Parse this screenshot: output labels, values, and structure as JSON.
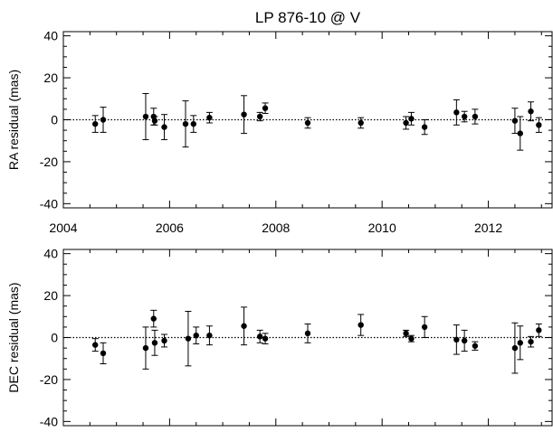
{
  "chart_data": [
    {
      "type": "scatter",
      "title": "LP 876-10 @ V",
      "xlabel": "",
      "ylabel": "RA residual (mas)",
      "xlim": [
        2004,
        2013.2
      ],
      "ylim": [
        -42,
        42
      ],
      "x_ticks": [
        "2004",
        "2006",
        "2008",
        "2010",
        "2012"
      ],
      "y_ticks": [
        "40",
        "20",
        "0",
        "-20",
        "-40"
      ],
      "reference_line": 0,
      "series": [
        {
          "x": [
            2004.6,
            2004.75,
            2005.55,
            2005.7,
            2005.72,
            2005.9,
            2006.3,
            2006.45,
            2006.75,
            2007.4,
            2007.7,
            2007.8,
            2008.6,
            2009.6,
            2010.45,
            2010.55,
            2010.8,
            2011.4,
            2011.55,
            2011.75,
            2012.5,
            2012.6,
            2012.8,
            2012.95
          ],
          "y": [
            -2,
            0,
            1.5,
            1.5,
            -0.5,
            -3.5,
            -2,
            -2,
            1,
            2.5,
            1.5,
            5.5,
            -1.5,
            -1.5,
            -1.5,
            0.5,
            -3.5,
            3.5,
            1.5,
            1.5,
            -0.5,
            -6.5,
            4,
            -2.5
          ],
          "err": [
            4,
            6,
            11,
            4,
            2,
            6,
            11,
            4,
            2.5,
            9,
            2,
            2.5,
            2.5,
            2.5,
            3,
            3,
            3.5,
            6,
            2.5,
            3.5,
            6,
            8,
            4.5,
            3.5
          ]
        }
      ]
    },
    {
      "type": "scatter",
      "title": "",
      "xlabel": "",
      "ylabel": "DEC residual (mas)",
      "xlim": [
        2004,
        2013.2
      ],
      "ylim": [
        -42,
        42
      ],
      "y_ticks": [
        "40",
        "20",
        "0",
        "-20",
        "-40"
      ],
      "reference_line": 0,
      "series": [
        {
          "x": [
            2004.6,
            2004.75,
            2005.55,
            2005.7,
            2005.72,
            2005.9,
            2006.35,
            2006.5,
            2006.75,
            2007.4,
            2007.7,
            2007.8,
            2008.6,
            2009.6,
            2010.45,
            2010.55,
            2010.8,
            2011.4,
            2011.55,
            2011.75,
            2012.5,
            2012.6,
            2012.8,
            2012.95
          ],
          "y": [
            -3.5,
            -7.5,
            -5,
            9,
            -2.5,
            -1.5,
            -0.5,
            1,
            1,
            5.5,
            0.5,
            -0.5,
            2,
            6,
            2,
            -0.5,
            5,
            -1,
            -1.5,
            -4,
            -5,
            -2.5,
            -2,
            3.5
          ],
          "err": [
            3,
            5,
            10,
            4,
            6,
            3,
            13,
            4,
            4.5,
            9,
            3,
            2.5,
            4.5,
            5,
            1.5,
            1.5,
            5,
            7,
            5,
            2,
            12,
            8,
            2.5,
            3
          ]
        }
      ]
    }
  ]
}
